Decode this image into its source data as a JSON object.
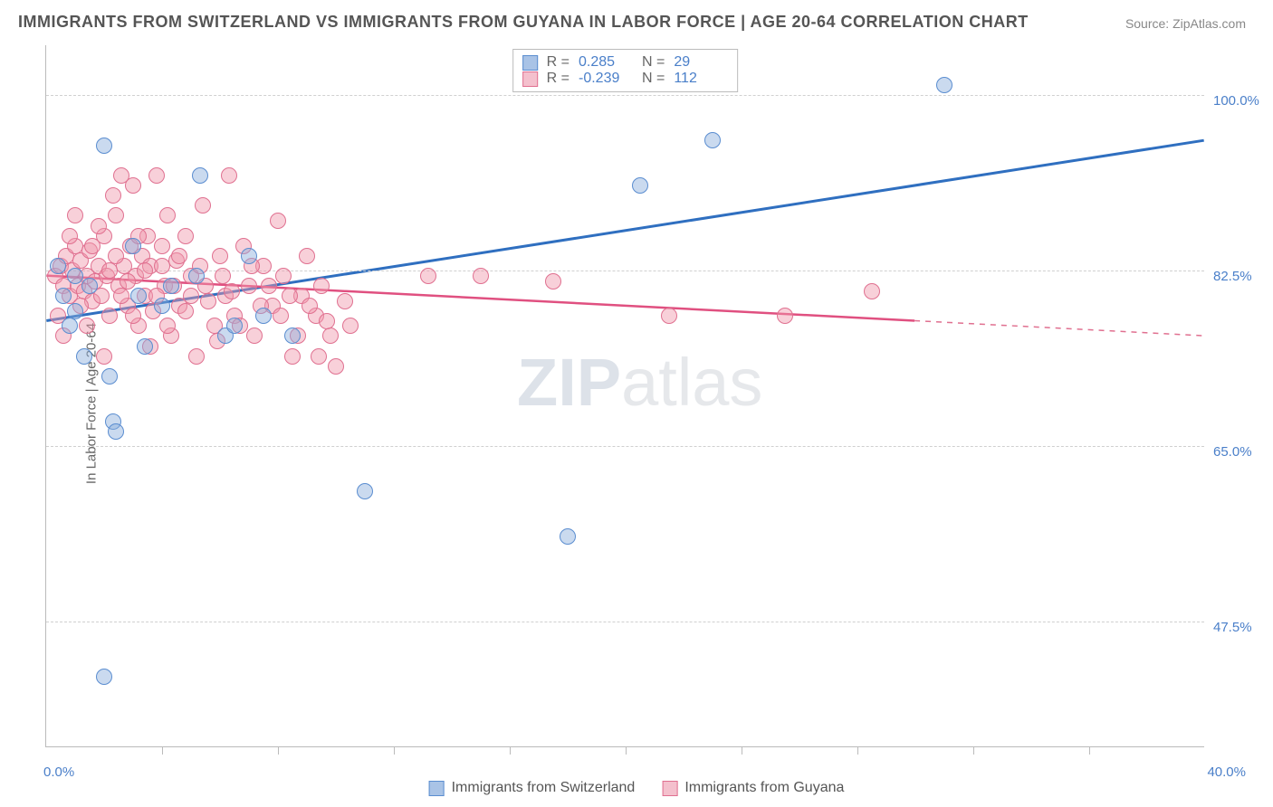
{
  "title": "IMMIGRANTS FROM SWITZERLAND VS IMMIGRANTS FROM GUYANA IN LABOR FORCE | AGE 20-64 CORRELATION CHART",
  "source": "Source: ZipAtlas.com",
  "watermark_bold": "ZIP",
  "watermark_rest": "atlas",
  "chart": {
    "type": "scatter",
    "background_color": "#ffffff",
    "grid_color": "#d0d0d0",
    "axis_color": "#bbbbbb",
    "axis_label_color": "#666666",
    "tick_label_color": "#4a7fc9",
    "ylabel": "In Labor Force | Age 20-64",
    "xlim": [
      0,
      40
    ],
    "ylim": [
      35,
      105
    ],
    "xtick_min_label": "0.0%",
    "xtick_max_label": "40.0%",
    "xtick_positions": [
      4,
      8,
      12,
      16,
      20,
      24,
      28,
      32,
      36
    ],
    "yticks": [
      {
        "v": 100.0,
        "label": "100.0%"
      },
      {
        "v": 82.5,
        "label": "82.5%"
      },
      {
        "v": 65.0,
        "label": "65.0%"
      },
      {
        "v": 47.5,
        "label": "47.5%"
      }
    ],
    "marker_radius": 18,
    "series": {
      "blue": {
        "name": "Immigrants from Switzerland",
        "color_fill": "#a9c3e6",
        "color_stroke": "#5a8dd0",
        "R": "0.285",
        "N": "29",
        "regression": {
          "x1": 0,
          "y1": 77.5,
          "x2": 40,
          "y2": 95.5,
          "stroke": "#2f6fc0",
          "width": 3
        },
        "points": [
          [
            0.4,
            83
          ],
          [
            0.8,
            77
          ],
          [
            1.0,
            82
          ],
          [
            1.5,
            81
          ],
          [
            1.3,
            74
          ],
          [
            2.0,
            95
          ],
          [
            2.2,
            72
          ],
          [
            2.3,
            67.5
          ],
          [
            2.4,
            66.5
          ],
          [
            3.0,
            85
          ],
          [
            3.2,
            80
          ],
          [
            3.4,
            75
          ],
          [
            4.3,
            81
          ],
          [
            5.3,
            92
          ],
          [
            5.2,
            82
          ],
          [
            4.0,
            79
          ],
          [
            6.2,
            76
          ],
          [
            6.5,
            77
          ],
          [
            7.0,
            84
          ],
          [
            7.5,
            78
          ],
          [
            8.5,
            76
          ],
          [
            11.0,
            60.5
          ],
          [
            18.0,
            56
          ],
          [
            20.5,
            91
          ],
          [
            23.0,
            95.5
          ],
          [
            31.0,
            101
          ],
          [
            2.0,
            42
          ],
          [
            1.0,
            78.5
          ],
          [
            0.6,
            80
          ]
        ]
      },
      "pink": {
        "name": "Immigrants from Guyana",
        "color_fill": "#f4c0cd",
        "color_stroke": "#e07090",
        "R": "-0.239",
        "N": "112",
        "regression_solid": {
          "x1": 0,
          "y1": 82.0,
          "x2": 30,
          "y2": 77.5,
          "stroke": "#e05080",
          "width": 2.5
        },
        "regression_dashed": {
          "x1": 30,
          "y1": 77.5,
          "x2": 40,
          "y2": 76.0,
          "stroke": "#e07090",
          "width": 1.5
        },
        "points": [
          [
            0.3,
            82
          ],
          [
            0.5,
            83
          ],
          [
            0.6,
            81
          ],
          [
            0.7,
            84
          ],
          [
            0.8,
            80
          ],
          [
            0.9,
            82.5
          ],
          [
            1.0,
            85
          ],
          [
            1.1,
            81
          ],
          [
            1.2,
            83.5
          ],
          [
            1.3,
            80.5
          ],
          [
            1.4,
            82
          ],
          [
            1.5,
            84.5
          ],
          [
            1.6,
            79.5
          ],
          [
            1.7,
            81.5
          ],
          [
            1.8,
            83
          ],
          [
            1.9,
            80
          ],
          [
            2.0,
            86
          ],
          [
            2.1,
            82
          ],
          [
            2.2,
            78
          ],
          [
            2.3,
            90
          ],
          [
            2.4,
            88
          ],
          [
            2.5,
            81
          ],
          [
            2.6,
            92
          ],
          [
            2.7,
            83
          ],
          [
            2.8,
            79
          ],
          [
            2.9,
            85
          ],
          [
            3.0,
            91
          ],
          [
            3.1,
            82
          ],
          [
            3.2,
            77
          ],
          [
            3.3,
            84
          ],
          [
            3.4,
            80
          ],
          [
            3.5,
            86
          ],
          [
            3.6,
            83
          ],
          [
            3.7,
            78.5
          ],
          [
            3.8,
            92
          ],
          [
            4.0,
            85
          ],
          [
            4.1,
            81
          ],
          [
            4.2,
            88
          ],
          [
            4.3,
            76
          ],
          [
            4.5,
            83.5
          ],
          [
            4.6,
            79
          ],
          [
            4.8,
            86
          ],
          [
            5.0,
            82
          ],
          [
            5.2,
            74
          ],
          [
            5.4,
            89
          ],
          [
            5.5,
            81
          ],
          [
            5.8,
            77
          ],
          [
            6.0,
            84
          ],
          [
            6.2,
            80
          ],
          [
            6.3,
            92
          ],
          [
            6.5,
            78
          ],
          [
            6.8,
            85
          ],
          [
            7.0,
            81
          ],
          [
            7.2,
            76
          ],
          [
            7.5,
            83
          ],
          [
            7.8,
            79
          ],
          [
            8.0,
            87.5
          ],
          [
            8.2,
            82
          ],
          [
            8.5,
            74
          ],
          [
            8.8,
            80
          ],
          [
            9.0,
            84
          ],
          [
            9.3,
            78
          ],
          [
            9.5,
            81
          ],
          [
            9.8,
            76
          ],
          [
            10.0,
            73
          ],
          [
            10.3,
            79.5
          ],
          [
            10.5,
            77
          ],
          [
            13.2,
            82
          ],
          [
            15.0,
            82
          ],
          [
            17.5,
            81.5
          ],
          [
            21.5,
            78
          ],
          [
            25.5,
            78
          ],
          [
            28.5,
            80.5
          ],
          [
            0.4,
            78
          ],
          [
            0.6,
            76
          ],
          [
            0.8,
            86
          ],
          [
            1.0,
            88
          ],
          [
            1.2,
            79
          ],
          [
            1.4,
            77
          ],
          [
            1.6,
            85
          ],
          [
            1.8,
            87
          ],
          [
            2.0,
            74
          ],
          [
            2.2,
            82.5
          ],
          [
            2.4,
            84
          ],
          [
            2.6,
            80
          ],
          [
            2.8,
            81.5
          ],
          [
            3.0,
            78
          ],
          [
            3.2,
            86
          ],
          [
            3.4,
            82.5
          ],
          [
            3.6,
            75
          ],
          [
            3.8,
            80
          ],
          [
            4.0,
            83
          ],
          [
            4.2,
            77
          ],
          [
            4.4,
            81
          ],
          [
            4.6,
            84
          ],
          [
            4.8,
            78.5
          ],
          [
            5.0,
            80
          ],
          [
            5.3,
            83
          ],
          [
            5.6,
            79.5
          ],
          [
            5.9,
            75.5
          ],
          [
            6.1,
            82
          ],
          [
            6.4,
            80.5
          ],
          [
            6.7,
            77
          ],
          [
            7.1,
            83
          ],
          [
            7.4,
            79
          ],
          [
            7.7,
            81
          ],
          [
            8.1,
            78
          ],
          [
            8.4,
            80
          ],
          [
            8.7,
            76
          ],
          [
            9.1,
            79
          ],
          [
            9.4,
            74
          ],
          [
            9.7,
            77.5
          ]
        ]
      }
    }
  },
  "legend_bottom": {
    "items": [
      {
        "swatch": "blue",
        "label": "Immigrants from Switzerland"
      },
      {
        "swatch": "pink",
        "label": "Immigrants from Guyana"
      }
    ]
  }
}
